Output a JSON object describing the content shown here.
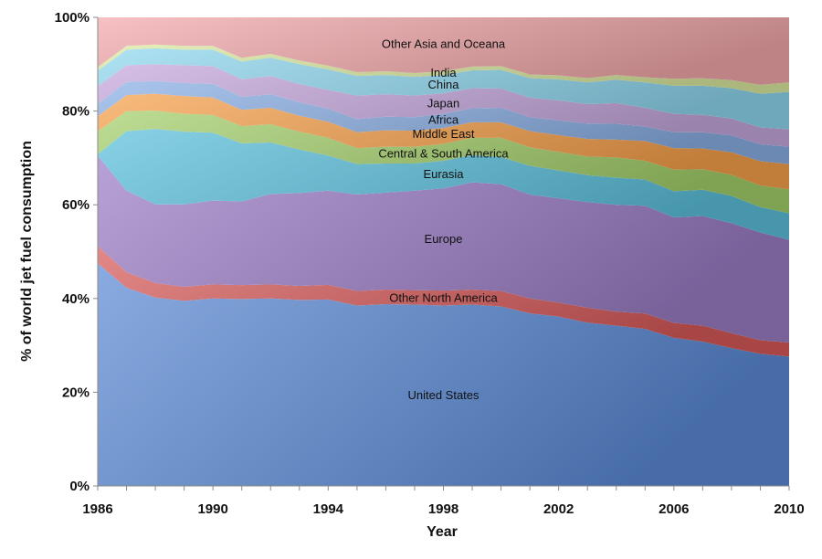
{
  "chart_data": {
    "type": "area",
    "stacked": true,
    "normalized": true,
    "xlabel": "Year",
    "ylabel": "% of world jet fuel consumption",
    "xlim": [
      1986,
      2010
    ],
    "ylim": [
      0,
      100
    ],
    "x_ticks": [
      1986,
      1990,
      1994,
      1998,
      2002,
      2006,
      2010
    ],
    "y_ticks": [
      0,
      20,
      40,
      60,
      80,
      100
    ],
    "y_tick_suffix": "%",
    "grid": false,
    "legend": "none (labels placed on areas)",
    "x": [
      1986,
      1987,
      1988,
      1989,
      1990,
      1991,
      1992,
      1993,
      1994,
      1995,
      1996,
      1997,
      1998,
      1999,
      2000,
      2001,
      2002,
      2003,
      2004,
      2005,
      2006,
      2007,
      2008,
      2009,
      2010
    ],
    "series": [
      {
        "name": "United States",
        "color": "#5b8bd6",
        "values": [
          47.5,
          42.3,
          40.2,
          39.5,
          40.0,
          40.2,
          40.0,
          39.7,
          39.8,
          38.5,
          38.8,
          38.7,
          38.5,
          38.7,
          38.3,
          37.2,
          36.5,
          35.2,
          34.2,
          33.5,
          31.6,
          30.8,
          29.4,
          28.2,
          27.6
        ]
      },
      {
        "name": "Other North America",
        "color": "#d85a5a",
        "values": [
          3.7,
          3.3,
          3.1,
          3.0,
          3.0,
          3.0,
          3.0,
          3.0,
          3.1,
          3.1,
          3.1,
          3.1,
          3.2,
          3.2,
          3.3,
          3.2,
          3.0,
          3.2,
          3.0,
          3.3,
          3.2,
          3.4,
          3.2,
          2.9,
          3.0
        ]
      },
      {
        "name": "Europe",
        "color": "#9b7cc6",
        "values": [
          19.3,
          17.4,
          16.8,
          17.6,
          17.9,
          18.0,
          19.3,
          19.8,
          20.1,
          20.6,
          20.7,
          21.2,
          21.8,
          22.9,
          22.8,
          22.4,
          22.5,
          22.8,
          22.8,
          23.0,
          22.5,
          23.4,
          23.5,
          23.0,
          21.9
        ]
      },
      {
        "name": "Eurasia",
        "color": "#5bc0dc",
        "values": [
          0.3,
          12.7,
          16.1,
          15.5,
          14.5,
          12.5,
          11.0,
          9.3,
          7.5,
          6.5,
          6.2,
          5.8,
          5.9,
          5.8,
          5.8,
          6.2,
          6.0,
          5.8,
          5.8,
          5.6,
          5.6,
          5.6,
          5.8,
          5.4,
          5.7
        ]
      },
      {
        "name": "Central & South America",
        "color": "#a4d06a",
        "values": [
          4.9,
          4.3,
          3.9,
          3.8,
          3.8,
          3.7,
          3.9,
          3.8,
          3.8,
          3.4,
          3.6,
          3.6,
          3.6,
          3.7,
          4.1,
          4.0,
          4.0,
          4.0,
          4.3,
          4.0,
          4.6,
          4.4,
          4.5,
          4.6,
          5.1
        ]
      },
      {
        "name": "Middle East",
        "color": "#f7a04a",
        "values": [
          3.2,
          3.4,
          3.6,
          3.8,
          3.7,
          3.5,
          3.5,
          3.4,
          3.4,
          3.4,
          3.5,
          3.4,
          3.4,
          3.3,
          3.3,
          3.5,
          3.6,
          3.8,
          3.8,
          4.2,
          4.6,
          4.4,
          4.8,
          5.2,
          5.4
        ]
      },
      {
        "name": "Africa",
        "color": "#8ab0e6",
        "values": [
          2.6,
          2.8,
          2.7,
          2.8,
          2.9,
          2.8,
          2.9,
          2.9,
          2.8,
          2.8,
          2.9,
          2.9,
          3.0,
          3.0,
          3.1,
          3.0,
          3.2,
          3.3,
          3.4,
          3.1,
          3.4,
          3.5,
          3.6,
          3.6,
          3.7
        ]
      },
      {
        "name": "Japan",
        "color": "#c6a8de",
        "values": [
          3.8,
          3.6,
          3.6,
          3.8,
          3.8,
          3.8,
          3.9,
          3.9,
          4.0,
          5.0,
          4.8,
          4.6,
          4.4,
          4.3,
          4.1,
          4.2,
          4.3,
          4.2,
          4.4,
          4.0,
          3.9,
          3.7,
          3.6,
          3.6,
          3.7
        ]
      },
      {
        "name": "China",
        "color": "#8fd8f0",
        "values": [
          3.3,
          3.3,
          3.4,
          3.3,
          3.5,
          3.8,
          3.9,
          4.2,
          4.4,
          4.2,
          4.1,
          4.0,
          3.9,
          3.8,
          4.0,
          4.2,
          4.5,
          4.7,
          5.0,
          5.4,
          6.0,
          6.2,
          6.5,
          7.2,
          8.0
        ]
      },
      {
        "name": "India",
        "color": "#dceaa0",
        "values": [
          0.8,
          0.8,
          0.8,
          0.8,
          0.8,
          0.8,
          0.8,
          0.8,
          0.8,
          0.8,
          0.8,
          0.8,
          0.8,
          0.8,
          0.8,
          0.8,
          0.9,
          0.9,
          1.0,
          1.1,
          1.5,
          1.6,
          1.7,
          1.9,
          2.0
        ]
      },
      {
        "name": "Other Asia and Oceana",
        "color": "#f4a9ab",
        "values": [
          10.6,
          6.1,
          5.8,
          6.1,
          6.1,
          8.7,
          7.8,
          9.2,
          10.3,
          11.7,
          11.5,
          11.9,
          11.5,
          10.5,
          10.4,
          12.3,
          12.5,
          13.1,
          12.3,
          12.8,
          13.1,
          13.0,
          13.4,
          14.4,
          13.9
        ]
      }
    ]
  }
}
